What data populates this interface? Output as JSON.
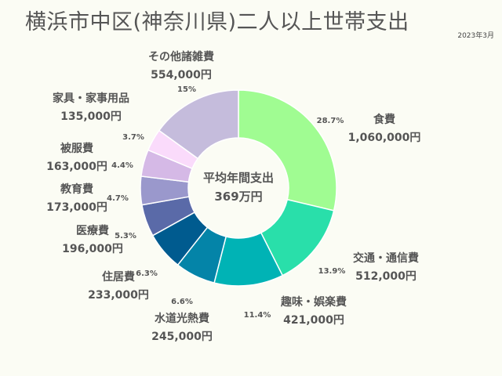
{
  "header": {
    "title": "横浜市中区(神奈川県)二人以上世帯支出",
    "date": "2023年3月"
  },
  "chart_data": {
    "type": "pie",
    "center_label": {
      "line1": "平均年間支出",
      "line2": "369万円"
    },
    "slices": [
      {
        "name": "食費",
        "value_text": "1,060,000円",
        "value": 1060000,
        "percent": "28.7%",
        "percent_value": 28.7,
        "color": "#a0fc92"
      },
      {
        "name": "交通・通信費",
        "value_text": "512,000円",
        "value": 512000,
        "percent": "13.9%",
        "percent_value": 13.9,
        "color": "#29dfaa"
      },
      {
        "name": "趣味・娯楽費",
        "value_text": "421,000円",
        "value": 421000,
        "percent": "11.4%",
        "percent_value": 11.4,
        "color": "#00b3b5"
      },
      {
        "name": "水道光熱費",
        "value_text": "245,000円",
        "value": 245000,
        "percent": "6.6%",
        "percent_value": 6.6,
        "color": "#0484a8"
      },
      {
        "name": "住居費",
        "value_text": "233,000円",
        "value": 233000,
        "percent": "6.3%",
        "percent_value": 6.3,
        "color": "#005b8f"
      },
      {
        "name": "医療費",
        "value_text": "196,000円",
        "value": 196000,
        "percent": "5.3%",
        "percent_value": 5.3,
        "color": "#5a6aa8"
      },
      {
        "name": "教育費",
        "value_text": "173,000円",
        "value": 173000,
        "percent": "4.7%",
        "percent_value": 4.7,
        "color": "#9a98cc"
      },
      {
        "name": "被服費",
        "value_text": "163,000円",
        "value": 163000,
        "percent": "4.4%",
        "percent_value": 4.4,
        "color": "#d5b9e6"
      },
      {
        "name": "家具・家事用品",
        "value_text": "135,000円",
        "value": 135000,
        "percent": "3.7%",
        "percent_value": 3.7,
        "color": "#fadbfb"
      },
      {
        "name": "その他諸雑費",
        "value_text": "554,000円",
        "value": 554000,
        "percent": "15%",
        "percent_value": 15,
        "color": "#c5bcdc"
      }
    ]
  }
}
